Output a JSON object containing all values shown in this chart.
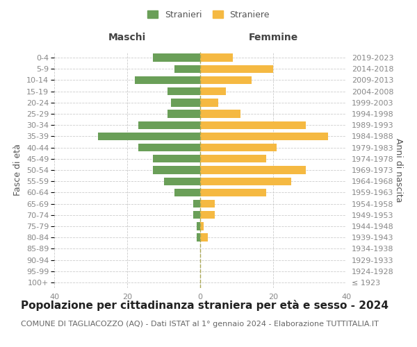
{
  "age_groups": [
    "100+",
    "95-99",
    "90-94",
    "85-89",
    "80-84",
    "75-79",
    "70-74",
    "65-69",
    "60-64",
    "55-59",
    "50-54",
    "45-49",
    "40-44",
    "35-39",
    "30-34",
    "25-29",
    "20-24",
    "15-19",
    "10-14",
    "5-9",
    "0-4"
  ],
  "birth_years": [
    "≤ 1923",
    "1924-1928",
    "1929-1933",
    "1934-1938",
    "1939-1943",
    "1944-1948",
    "1949-1953",
    "1954-1958",
    "1959-1963",
    "1964-1968",
    "1969-1973",
    "1974-1978",
    "1979-1983",
    "1984-1988",
    "1989-1993",
    "1994-1998",
    "1999-2003",
    "2004-2008",
    "2009-2013",
    "2014-2018",
    "2019-2023"
  ],
  "maschi": [
    0,
    0,
    0,
    0,
    1,
    1,
    2,
    2,
    7,
    10,
    13,
    13,
    17,
    28,
    17,
    9,
    8,
    9,
    18,
    7,
    13
  ],
  "femmine": [
    0,
    0,
    0,
    0,
    2,
    1,
    4,
    4,
    18,
    25,
    29,
    18,
    21,
    35,
    29,
    11,
    5,
    7,
    14,
    20,
    9
  ],
  "maschi_color": "#6a9f58",
  "femmine_color": "#f5b942",
  "xlim": 40,
  "title": "Popolazione per cittadinanza straniera per età e sesso - 2024",
  "subtitle": "COMUNE DI TAGLIACOZZO (AQ) - Dati ISTAT al 1° gennaio 2024 - Elaborazione TUTTITALIA.IT",
  "ylabel_left": "Fasce di età",
  "ylabel_right": "Anni di nascita",
  "xlabel_left": "Maschi",
  "xlabel_top_right": "Femmine",
  "legend_maschi": "Stranieri",
  "legend_femmine": "Straniere",
  "background_color": "#ffffff",
  "grid_color": "#cccccc",
  "bar_height": 0.7,
  "title_fontsize": 11,
  "subtitle_fontsize": 8,
  "axis_label_fontsize": 9,
  "tick_fontsize": 8
}
